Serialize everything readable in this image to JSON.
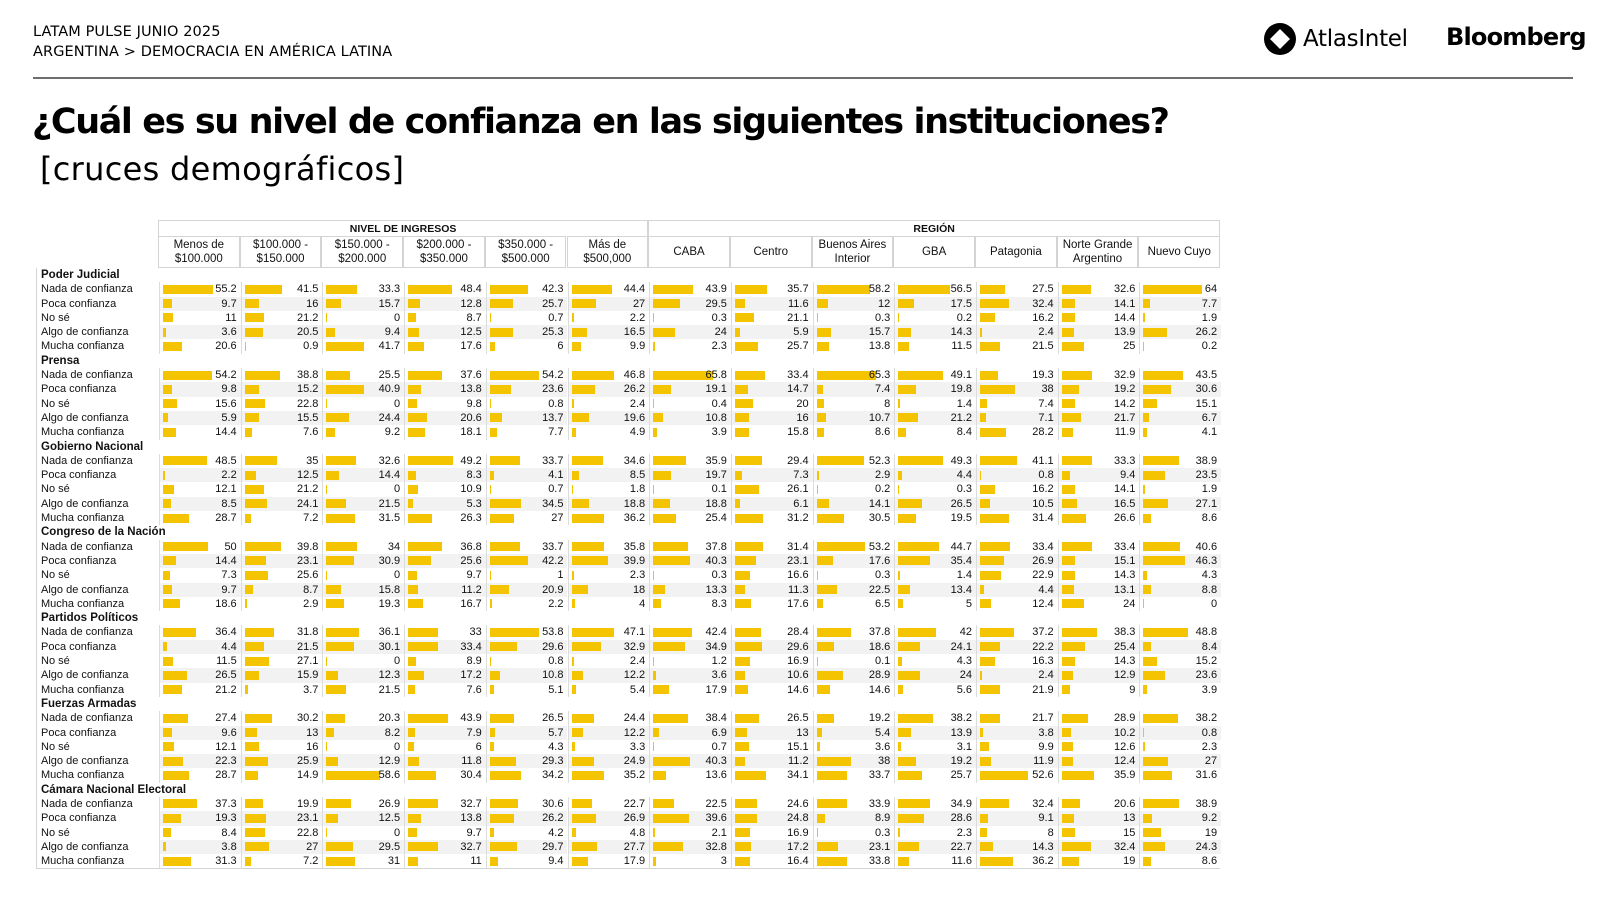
{
  "header": {
    "line1": "LATAM PULSE JUNIO 2025",
    "line2": "ARGENTINA > DEMOCRACIA EN AMÉRICA LATINA"
  },
  "logos": {
    "atlas_icon": "atlasintel-logo-icon",
    "atlas_text": "AtlasIntel",
    "bloomberg_text": "Bloomberg"
  },
  "title": "¿Cuál es su nivel de confianza en las siguientes instituciones?",
  "subtitle": "[cruces demográficos]",
  "colors": {
    "bar": "#f5c400",
    "stripe": "#f2f2f2",
    "grid": "#d4d4d4"
  },
  "chart_data": {
    "type": "table",
    "column_groups": [
      {
        "label": "NIVEL DE INGRESOS",
        "span": 6
      },
      {
        "label": "REGIÓN",
        "span": 7
      }
    ],
    "columns": [
      [
        "Menos de",
        "$100.000"
      ],
      [
        "$100.000 -",
        "$150.000"
      ],
      [
        "$150.000 -",
        "$200.000"
      ],
      [
        "$200.000 -",
        "$350.000"
      ],
      [
        "$350.000 -",
        "$500.000"
      ],
      [
        "Más de",
        "$500,000"
      ],
      [
        "CABA"
      ],
      [
        "Centro"
      ],
      [
        "Buenos Aires",
        "Interior"
      ],
      [
        "GBA"
      ],
      [
        "Patagonia"
      ],
      [
        "Norte Grande",
        "Argentino"
      ],
      [
        "Nuevo Cuyo"
      ]
    ],
    "sections": [
      {
        "name": "Poder Judicial",
        "rows": [
          {
            "label": "Nada de confianza",
            "values": [
              55.2,
              41.5,
              33.3,
              48.4,
              42.3,
              44.4,
              43.9,
              35.7,
              58.2,
              56.5,
              27.5,
              32.6,
              64
            ]
          },
          {
            "label": "Poca confianza",
            "values": [
              9.7,
              16,
              15.7,
              12.8,
              25.7,
              27,
              29.5,
              11.6,
              12,
              17.5,
              32.4,
              14.1,
              7.7
            ]
          },
          {
            "label": "No sé",
            "values": [
              11,
              21.2,
              0,
              8.7,
              0.7,
              2.2,
              0.3,
              21.1,
              0.3,
              0.2,
              16.2,
              14.4,
              1.9
            ]
          },
          {
            "label": "Algo de confianza",
            "values": [
              3.6,
              20.5,
              9.4,
              12.5,
              25.3,
              16.5,
              24,
              5.9,
              15.7,
              14.3,
              2.4,
              13.9,
              26.2
            ]
          },
          {
            "label": "Mucha confianza",
            "values": [
              20.6,
              0.9,
              41.7,
              17.6,
              6,
              9.9,
              2.3,
              25.7,
              13.8,
              11.5,
              21.5,
              25,
              0.2
            ]
          }
        ]
      },
      {
        "name": "Prensa",
        "rows": [
          {
            "label": "Nada de confianza",
            "values": [
              54.2,
              38.8,
              25.5,
              37.6,
              54.2,
              46.8,
              65.8,
              33.4,
              65.3,
              49.1,
              19.3,
              32.9,
              43.5
            ]
          },
          {
            "label": "Poca confianza",
            "values": [
              9.8,
              15.2,
              40.9,
              13.8,
              23.6,
              26.2,
              19.1,
              14.7,
              7.4,
              19.8,
              38,
              19.2,
              30.6
            ]
          },
          {
            "label": "No sé",
            "values": [
              15.6,
              22.8,
              0,
              9.8,
              0.8,
              2.4,
              0.4,
              20,
              8,
              1.4,
              7.4,
              14.2,
              15.1
            ]
          },
          {
            "label": "Algo de confianza",
            "values": [
              5.9,
              15.5,
              24.4,
              20.6,
              13.7,
              19.6,
              10.8,
              16,
              10.7,
              21.2,
              7.1,
              21.7,
              6.7
            ]
          },
          {
            "label": "Mucha confianza",
            "values": [
              14.4,
              7.6,
              9.2,
              18.1,
              7.7,
              4.9,
              3.9,
              15.8,
              8.6,
              8.4,
              28.2,
              11.9,
              4.1
            ]
          }
        ]
      },
      {
        "name": "Gobierno Nacional",
        "rows": [
          {
            "label": "Nada de confianza",
            "values": [
              48.5,
              35,
              32.6,
              49.2,
              33.7,
              34.6,
              35.9,
              29.4,
              52.3,
              49.3,
              41.1,
              33.3,
              38.9
            ]
          },
          {
            "label": "Poca confianza",
            "values": [
              2.2,
              12.5,
              14.4,
              8.3,
              4.1,
              8.5,
              19.7,
              7.3,
              2.9,
              4.4,
              0.8,
              9.4,
              23.5
            ]
          },
          {
            "label": "No sé",
            "values": [
              12.1,
              21.2,
              0,
              10.9,
              0.7,
              1.8,
              0.1,
              26.1,
              0.2,
              0.3,
              16.2,
              14.1,
              1.9
            ]
          },
          {
            "label": "Algo de confianza",
            "values": [
              8.5,
              24.1,
              21.5,
              5.3,
              34.5,
              18.8,
              18.8,
              6.1,
              14.1,
              26.5,
              10.5,
              16.5,
              27.1
            ]
          },
          {
            "label": "Mucha confianza",
            "values": [
              28.7,
              7.2,
              31.5,
              26.3,
              27,
              36.2,
              25.4,
              31.2,
              30.5,
              19.5,
              31.4,
              26.6,
              8.6
            ]
          }
        ]
      },
      {
        "name": "Congreso de la Nación",
        "rows": [
          {
            "label": "Nada de confianza",
            "values": [
              50,
              39.8,
              34,
              36.8,
              33.7,
              35.8,
              37.8,
              31.4,
              53.2,
              44.7,
              33.4,
              33.4,
              40.6
            ]
          },
          {
            "label": "Poca confianza",
            "values": [
              14.4,
              23.1,
              30.9,
              25.6,
              42.2,
              39.9,
              40.3,
              23.1,
              17.6,
              35.4,
              26.9,
              15.1,
              46.3
            ]
          },
          {
            "label": "No sé",
            "values": [
              7.3,
              25.6,
              0,
              9.7,
              1,
              2.3,
              0.3,
              16.6,
              0.3,
              1.4,
              22.9,
              14.3,
              4.3
            ]
          },
          {
            "label": "Algo de confianza",
            "values": [
              9.7,
              8.7,
              15.8,
              11.2,
              20.9,
              18,
              13.3,
              11.3,
              22.5,
              13.4,
              4.4,
              13.1,
              8.8
            ]
          },
          {
            "label": "Mucha confianza",
            "values": [
              18.6,
              2.9,
              19.3,
              16.7,
              2.2,
              4,
              8.3,
              17.6,
              6.5,
              5,
              12.4,
              24,
              0
            ]
          }
        ]
      },
      {
        "name": "Partidos Políticos",
        "rows": [
          {
            "label": "Nada de confianza",
            "values": [
              36.4,
              31.8,
              36.1,
              33,
              53.8,
              47.1,
              42.4,
              28.4,
              37.8,
              42,
              37.2,
              38.3,
              48.8
            ]
          },
          {
            "label": "Poca confianza",
            "values": [
              4.4,
              21.5,
              30.1,
              33.4,
              29.6,
              32.9,
              34.9,
              29.6,
              18.6,
              24.1,
              22.2,
              25.4,
              8.4
            ]
          },
          {
            "label": "No sé",
            "values": [
              11.5,
              27.1,
              0,
              8.9,
              0.8,
              2.4,
              1.2,
              16.9,
              0.1,
              4.3,
              16.3,
              14.3,
              15.2
            ]
          },
          {
            "label": "Algo de confianza",
            "values": [
              26.5,
              15.9,
              12.3,
              17.2,
              10.8,
              12.2,
              3.6,
              10.6,
              28.9,
              24,
              2.4,
              12.9,
              23.6
            ]
          },
          {
            "label": "Mucha confianza",
            "values": [
              21.2,
              3.7,
              21.5,
              7.6,
              5.1,
              5.4,
              17.9,
              14.6,
              14.6,
              5.6,
              21.9,
              9,
              3.9
            ]
          }
        ]
      },
      {
        "name": "Fuerzas Armadas",
        "rows": [
          {
            "label": "Nada de confianza",
            "values": [
              27.4,
              30.2,
              20.3,
              43.9,
              26.5,
              24.4,
              38.4,
              26.5,
              19.2,
              38.2,
              21.7,
              28.9,
              38.2
            ]
          },
          {
            "label": "Poca confianza",
            "values": [
              9.6,
              13,
              8.2,
              7.9,
              5.7,
              12.2,
              6.9,
              13,
              5.4,
              13.9,
              3.8,
              10.2,
              0.8
            ]
          },
          {
            "label": "No sé",
            "values": [
              12.1,
              16,
              0,
              6,
              4.3,
              3.3,
              0.7,
              15.1,
              3.6,
              3.1,
              9.9,
              12.6,
              2.3
            ]
          },
          {
            "label": "Algo de confianza",
            "values": [
              22.3,
              25.9,
              12.9,
              11.8,
              29.3,
              24.9,
              40.3,
              11.2,
              38,
              19.2,
              11.9,
              12.4,
              27
            ]
          },
          {
            "label": "Mucha confianza",
            "values": [
              28.7,
              14.9,
              58.6,
              30.4,
              34.2,
              35.2,
              13.6,
              34.1,
              33.7,
              25.7,
              52.6,
              35.9,
              31.6
            ]
          }
        ]
      },
      {
        "name": "Cámara Nacional Electoral",
        "rows": [
          {
            "label": "Nada de confianza",
            "values": [
              37.3,
              19.9,
              26.9,
              32.7,
              30.6,
              22.7,
              22.5,
              24.6,
              33.9,
              34.9,
              32.4,
              20.6,
              38.9
            ]
          },
          {
            "label": "Poca confianza",
            "values": [
              19.3,
              23.1,
              12.5,
              13.8,
              26.2,
              26.9,
              39.6,
              24.8,
              8.9,
              28.6,
              9.1,
              13,
              9.2
            ]
          },
          {
            "label": "No sé",
            "values": [
              8.4,
              22.8,
              0,
              9.7,
              4.2,
              4.8,
              2.1,
              16.9,
              0.3,
              2.3,
              8,
              15,
              19
            ]
          },
          {
            "label": "Algo de confianza",
            "values": [
              3.8,
              27,
              29.5,
              32.7,
              29.7,
              27.7,
              32.8,
              17.2,
              23.1,
              22.7,
              14.3,
              32.4,
              24.3
            ]
          },
          {
            "label": "Mucha confianza",
            "values": [
              31.3,
              7.2,
              31,
              11,
              9.4,
              17.9,
              3,
              16.4,
              33.8,
              11.6,
              36.2,
              19,
              8.6
            ]
          }
        ]
      }
    ]
  }
}
